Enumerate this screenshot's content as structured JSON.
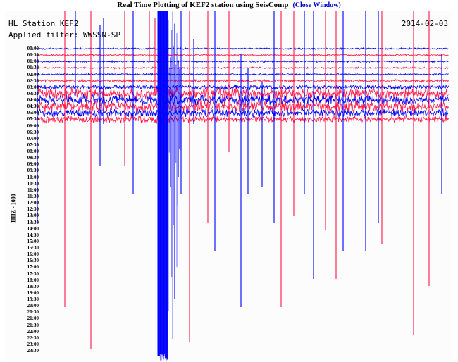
{
  "title": "Real Time Plotting of KEF2 station using SeisComp",
  "close_link": "(Close Window)",
  "station": "HL Station KEF2",
  "filter": "Applied filter: WWSSN-SP",
  "date": "2014-02-03",
  "channel_label": "HHZ - 1000",
  "colors": {
    "trace_a": "#0000ff",
    "trace_b": "#ff1a4a",
    "link": "#0000cc"
  },
  "time_labels": [
    "00:00",
    "00:30",
    "01:00",
    "01:30",
    "02:00",
    "02:30",
    "03:00",
    "03:30",
    "04:00",
    "04:30",
    "05:00",
    "05:30",
    "06:00",
    "06:30",
    "07:00",
    "07:30",
    "08:00",
    "08:30",
    "09:00",
    "09:30",
    "10:00",
    "10:30",
    "11:00",
    "11:30",
    "12:00",
    "12:30",
    "13:00",
    "13:30",
    "14:00",
    "14:30",
    "15:00",
    "15:30",
    "16:00",
    "16:30",
    "17:00",
    "17:30",
    "18:00",
    "18:30",
    "19:00",
    "19:30",
    "20:00",
    "20:30",
    "21:00",
    "21:30",
    "22:00",
    "22:30",
    "23:00",
    "23:30"
  ]
}
